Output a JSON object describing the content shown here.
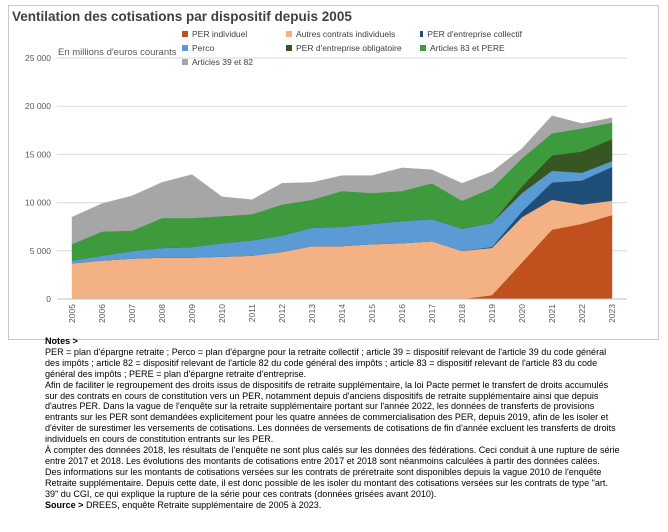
{
  "chart_data": {
    "type": "area",
    "stacked": true,
    "title": "Ventilation des cotisations par dispositif depuis 2005",
    "ylabel": "En millions d'euros courants",
    "ylim": [
      0,
      25000
    ],
    "yticks": [
      0,
      5000,
      10000,
      15000,
      20000,
      25000
    ],
    "ytick_labels": [
      "0",
      "5 000",
      "10 000",
      "15 000",
      "20 000",
      "25 000"
    ],
    "grid": true,
    "legend_placement": "top",
    "x": [
      "2005",
      "2006",
      "2007",
      "2008",
      "2009",
      "2010",
      "2011",
      "2012",
      "2013",
      "2014",
      "2015",
      "2016",
      "2017",
      "2018",
      "2019",
      "2020",
      "2021",
      "2022",
      "2023"
    ],
    "series": [
      {
        "name": "PER individuel",
        "color": "#c0501e",
        "values": [
          0,
          0,
          0,
          0,
          0,
          0,
          0,
          0,
          0,
          0,
          0,
          0,
          0,
          0,
          400,
          3800,
          7200,
          7800,
          8700
        ]
      },
      {
        "name": "Autres contrats individuels",
        "color": "#f4b183",
        "values": [
          3700,
          4000,
          4200,
          4300,
          4300,
          4400,
          4500,
          4900,
          5500,
          5500,
          5700,
          5800,
          6000,
          5000,
          4900,
          4700,
          3100,
          2000,
          1500
        ]
      },
      {
        "name": "PER d'entreprise collectif",
        "color": "#1f4e79",
        "values": [
          0,
          0,
          0,
          0,
          0,
          0,
          0,
          0,
          0,
          0,
          0,
          0,
          0,
          0,
          100,
          600,
          1800,
          2500,
          3500
        ]
      },
      {
        "name": "Perco",
        "color": "#5b9bd5",
        "values": [
          300,
          500,
          800,
          1000,
          1100,
          1400,
          1600,
          1700,
          1900,
          2000,
          2100,
          2300,
          2300,
          2300,
          2500,
          1900,
          1200,
          800,
          600
        ]
      },
      {
        "name": "PER d'entreprise obligatoire",
        "color": "#375623",
        "values": [
          0,
          0,
          0,
          0,
          0,
          0,
          0,
          0,
          0,
          0,
          0,
          0,
          0,
          0,
          0,
          700,
          1600,
          2200,
          2300
        ]
      },
      {
        "name": "Articles 83 et PERE",
        "color": "#3d9a3d",
        "values": [
          1700,
          2500,
          2100,
          3100,
          3000,
          2800,
          2700,
          3200,
          2900,
          3700,
          3200,
          3100,
          3700,
          2900,
          3600,
          2900,
          2300,
          2400,
          1700
        ]
      },
      {
        "name": "Articles 39 et 82",
        "color": "#a6a6a6",
        "values": [
          2800,
          2900,
          3600,
          3700,
          4500,
          2000,
          1500,
          2200,
          1800,
          1600,
          1800,
          2400,
          1400,
          1800,
          1700,
          1000,
          1800,
          500,
          500
        ]
      }
    ]
  },
  "notes": {
    "heading": "Notes >",
    "paragraphs": [
      "PER = plan d'épargne retraite ; Perco = plan d'épargne pour la retraite collectif ; article 39 = dispositif relevant de l'article 39 du code général des impôts ; article 82 = dispositif relevant de l'article 82 du code général des impôts ; article 83 = dispositif relevant de l'article 83 du code général des impôts ; PERE = plan d'épargne retraite d'entreprise.",
      "Afin de faciliter le regroupement des droits issus de dispositifs de retraite supplémentaire, la loi Pacte permet le transfert de droits accumulés sur des contrats en cours de constitution vers un PER, notamment depuis d'anciens dispositifs de retraite supplémentaire ainsi que depuis d'autres PER. Dans la vague de l'enquête sur la retraite supplémentaire portant sur l'année 2022, les données de transferts de provisions entrants sur les PER sont demandées explicitement pour les quatre années de commercialisation des PER, depuis 2019, afin de les isoler et d'éviter de surestimer les versements de cotisations. Les données de versements de cotisations de fin d'année excluent les transferts de droits individuels en cours de constitution entrants sur les PER.",
      "À compter des données 2018, les résultats de l'enquête ne sont plus calés sur les données des fédérations. Ceci conduit à une rupture de série entre 2017 et 2018.  Les évolutions des montants de cotisations entre 2017 et 2018 sont néanmoins calculées à partir des données calées.",
      "Des informations sur les montants de cotisations versées sur les contrats de préretraite sont disponibles depuis la vague 2010 de l'enquête Retraite supplémentaire. Depuis cette date, il est donc possible de les isoler du montant des cotisations versées sur les contrats de type \"art. 39\" du CGI, ce qui explique la rupture de la série pour ces contrats (données grisées avant 2010)."
    ],
    "source_label": "Source >",
    "source_text": " DREES, enquête Retraite supplémentaire de 2005 à 2023."
  }
}
